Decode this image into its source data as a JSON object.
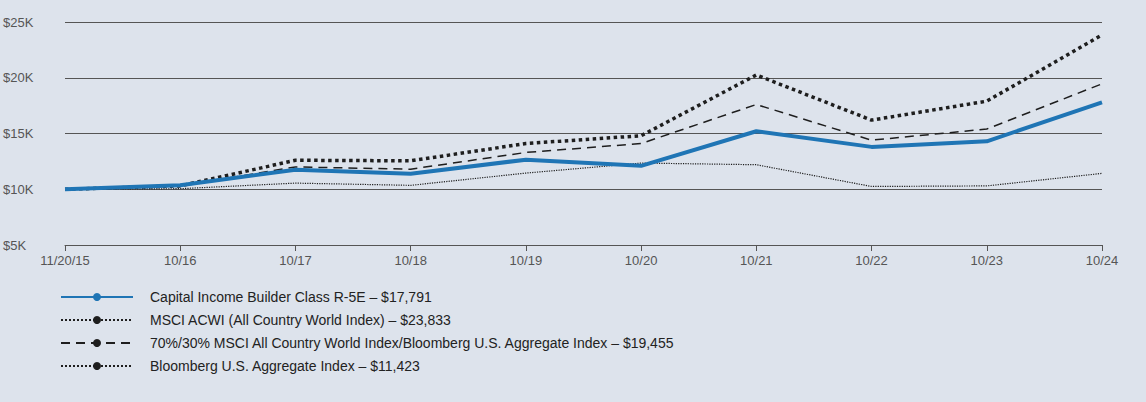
{
  "chart_data": {
    "type": "line",
    "categories": [
      "11/20/15",
      "10/16",
      "10/17",
      "10/18",
      "10/19",
      "10/20",
      "10/21",
      "10/22",
      "10/23",
      "10/24"
    ],
    "series": [
      {
        "name": "Capital Income Builder Class R-5E – $17,791",
        "color": "#1f75b5",
        "line_style": "solid",
        "values": [
          10000,
          10350,
          11750,
          11400,
          12650,
          12100,
          15200,
          13800,
          14300,
          17791
        ]
      },
      {
        "name": "MSCI ACWI (All Country World Index) – $23,833",
        "color": "#1e1e1e",
        "line_style": "dotted",
        "values": [
          10000,
          10300,
          12600,
          12550,
          14100,
          14800,
          20250,
          16200,
          17900,
          23833
        ]
      },
      {
        "name": "70%/30% MSCI All Country World Index/Bloomberg U.S. Aggregate Index – $19,455",
        "color": "#1e1e1e",
        "line_style": "dashed",
        "values": [
          10000,
          10300,
          12000,
          11800,
          13300,
          14100,
          17600,
          14400,
          15400,
          19455
        ]
      },
      {
        "name": "Bloomberg U.S. Aggregate Index – $11,423",
        "color": "#1e1e1e",
        "line_style": "dotted",
        "values": [
          10000,
          10050,
          10550,
          10350,
          11450,
          12350,
          12200,
          10250,
          10300,
          11423
        ]
      }
    ],
    "ylim": [
      5000,
      25000
    ],
    "yticks": [
      {
        "value": 5000,
        "label": "$5K"
      },
      {
        "value": 10000,
        "label": "$10K"
      },
      {
        "value": 15000,
        "label": "$15K"
      },
      {
        "value": 20000,
        "label": "$20K"
      },
      {
        "value": 25000,
        "label": "$25K"
      }
    ],
    "grid": true,
    "legend": "bottom-left"
  }
}
